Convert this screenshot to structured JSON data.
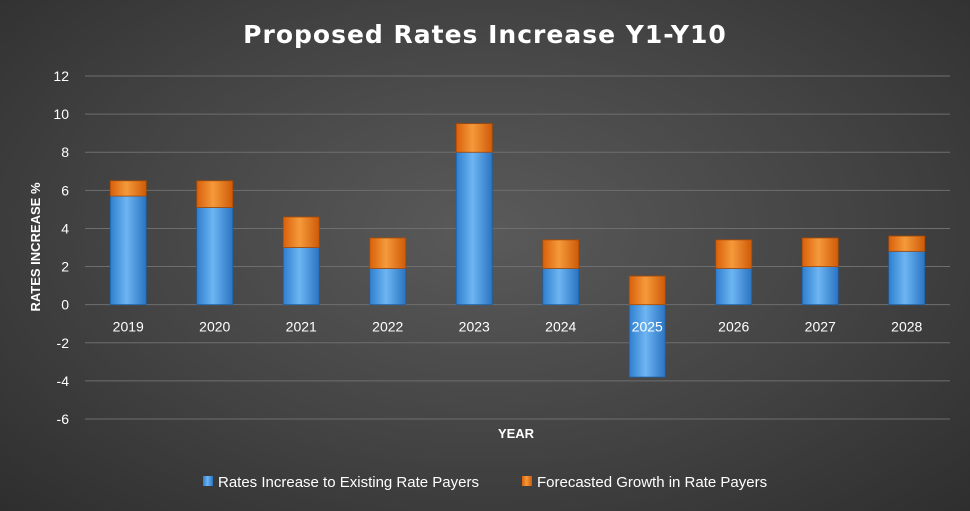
{
  "chart_data": {
    "type": "bar",
    "stacked": true,
    "title": "Proposed Rates Increase Y1-Y10",
    "xlabel": "YEAR",
    "ylabel": "RATES INCREASE %",
    "ylim": [
      -6,
      12
    ],
    "yticks": [
      12,
      10,
      8,
      6,
      4,
      2,
      0,
      -2,
      -4,
      -6
    ],
    "grid": true,
    "legend_position": "bottom",
    "categories": [
      "2019",
      "2020",
      "2021",
      "2022",
      "2023",
      "2024",
      "2025",
      "2026",
      "2027",
      "2028"
    ],
    "series": [
      {
        "name": "Rates Increase to Existing Rate Payers",
        "color": "#3b8fd9",
        "values": [
          5.7,
          5.1,
          3.0,
          1.9,
          8.0,
          1.9,
          -3.8,
          1.9,
          2.0,
          2.8
        ]
      },
      {
        "name": "Forecasted Growth in Rate Payers",
        "color": "#e8700d",
        "values": [
          0.8,
          1.4,
          1.6,
          1.6,
          1.5,
          1.5,
          1.5,
          1.5,
          1.5,
          0.8
        ]
      }
    ]
  }
}
